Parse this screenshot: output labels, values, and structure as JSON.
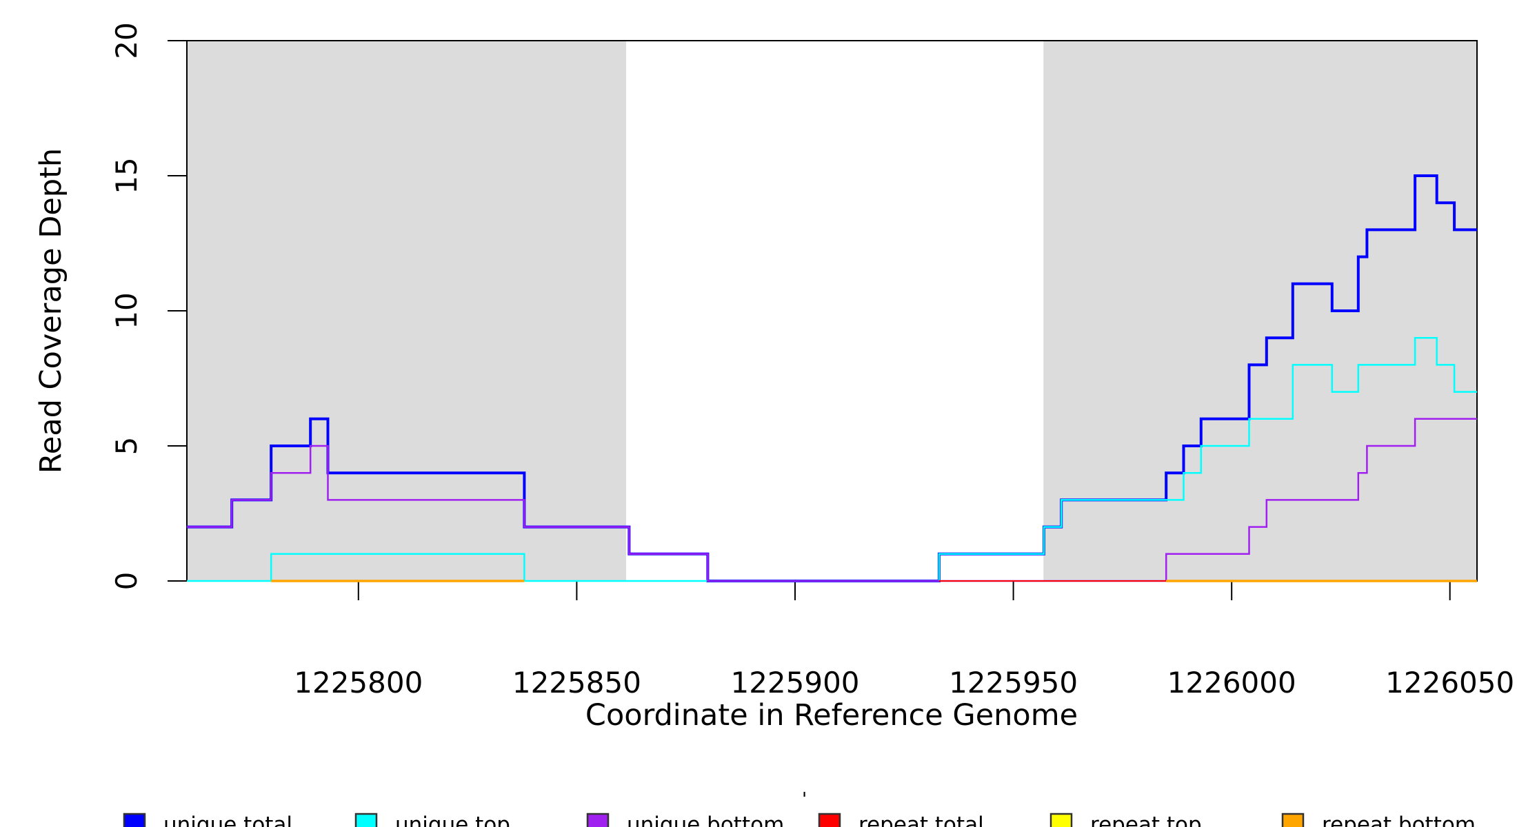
{
  "figure": {
    "background": "#ffffff",
    "stray_mark": "'"
  },
  "chart_data": {
    "type": "line",
    "style": "step",
    "title": "",
    "xlabel": "Coordinate in Reference Genome",
    "ylabel": "Read Coverage Depth",
    "xlim": [
      1225760.7,
      1226056.2
    ],
    "ylim": [
      0,
      20
    ],
    "x_ticks": [
      1225800,
      1225850,
      1225900,
      1225950,
      1226000,
      1226050
    ],
    "y_ticks": [
      0,
      5,
      10,
      15,
      20
    ],
    "grid": false,
    "legend_position": "bottom",
    "shaded_regions": [
      {
        "name": "left-repeat-region",
        "x_from": 1225760.7,
        "x_to": 1225861.3,
        "color": "#DCDCDC"
      },
      {
        "name": "right-repeat-region",
        "x_from": 1225956.9,
        "x_to": 1226056.2,
        "color": "#DCDCDC"
      }
    ],
    "series": [
      {
        "name": "unique total",
        "color": "#0000FF",
        "line_width": 4,
        "segments": [
          [
            [
              1225760.7,
              2
            ],
            [
              1225771,
              3
            ],
            [
              1225780,
              5
            ],
            [
              1225789,
              6
            ],
            [
              1225793,
              4
            ],
            [
              1225838,
              2
            ],
            [
              1225862,
              1
            ],
            [
              1225880,
              0
            ],
            [
              1225933,
              1
            ],
            [
              1225957,
              2
            ],
            [
              1225961,
              3
            ],
            [
              1225985,
              4
            ],
            [
              1225989,
              5
            ],
            [
              1225993,
              6
            ],
            [
              1226004,
              8
            ],
            [
              1226008,
              9
            ],
            [
              1226014,
              11
            ],
            [
              1226023,
              10
            ],
            [
              1226029,
              12
            ],
            [
              1226031,
              13
            ],
            [
              1226042,
              15
            ],
            [
              1226047,
              14
            ],
            [
              1226051,
              13
            ],
            [
              1226056.2,
              13
            ]
          ]
        ]
      },
      {
        "name": "unique top",
        "color": "#00FFFF",
        "line_width": 2.5,
        "segments": [
          [
            [
              1225760.7,
              0
            ],
            [
              1225780,
              1
            ],
            [
              1225838,
              0
            ],
            [
              1225933,
              1
            ],
            [
              1225957,
              2
            ],
            [
              1225961,
              3
            ],
            [
              1225989,
              4
            ],
            [
              1225993,
              5
            ],
            [
              1226004,
              6
            ],
            [
              1226014,
              8
            ],
            [
              1226023,
              7
            ],
            [
              1226029,
              8
            ],
            [
              1226042,
              9
            ],
            [
              1226047,
              8
            ],
            [
              1226051,
              7
            ],
            [
              1226056.2,
              7
            ]
          ]
        ]
      },
      {
        "name": "unique bottom",
        "color": "#A020F0",
        "line_width": 2.5,
        "segments": [
          [
            [
              1225760.7,
              2
            ],
            [
              1225771,
              3
            ],
            [
              1225780,
              4
            ],
            [
              1225789,
              5
            ],
            [
              1225793,
              3
            ],
            [
              1225838,
              2
            ],
            [
              1225862,
              1
            ],
            [
              1225880,
              0
            ],
            [
              1225985,
              1
            ],
            [
              1226004,
              2
            ],
            [
              1226008,
              3
            ],
            [
              1226029,
              4
            ],
            [
              1226031,
              5
            ],
            [
              1226042,
              6
            ],
            [
              1226056.2,
              6
            ]
          ]
        ]
      },
      {
        "name": "repeat total",
        "color": "#FF0000",
        "line_width": 2,
        "segments": [
          [
            [
              1225933,
              0
            ],
            [
              1226056.2,
              0
            ]
          ]
        ]
      },
      {
        "name": "repeat top",
        "color": "#FFFF00",
        "line_width": 2,
        "segments": [
          [
            [
              1225780,
              0
            ],
            [
              1225838,
              0
            ]
          ],
          [
            [
              1225985,
              0
            ],
            [
              1226056.2,
              0
            ]
          ]
        ]
      },
      {
        "name": "repeat bottom",
        "color": "#FFA500",
        "line_width": 3.5,
        "segments": [
          [
            [
              1225780,
              0
            ],
            [
              1225838,
              0
            ]
          ],
          [
            [
              1225985,
              0
            ],
            [
              1226056.2,
              0
            ]
          ]
        ]
      }
    ],
    "legend": {
      "items": [
        {
          "label": "unique total",
          "color": "#0000FF"
        },
        {
          "label": "unique top",
          "color": "#00FFFF"
        },
        {
          "label": "unique bottom",
          "color": "#A020F0"
        },
        {
          "label": "repeat total",
          "color": "#FF0000"
        },
        {
          "label": "repeat top",
          "color": "#FFFF00"
        },
        {
          "label": "repeat bottom",
          "color": "#FFA500"
        }
      ]
    }
  }
}
